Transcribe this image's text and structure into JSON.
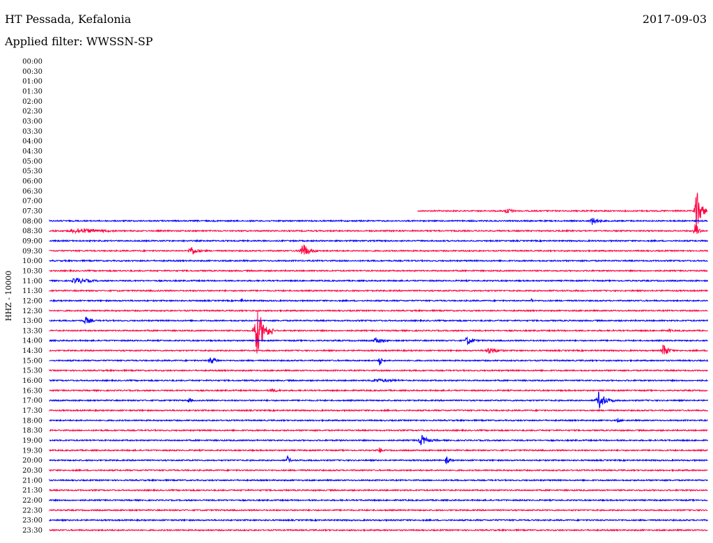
{
  "header": {
    "station": "HT Pessada, Kefalonia",
    "date": "2017-09-03",
    "filter": "Applied filter: WWSSN-SP"
  },
  "colors": {
    "red": "#ff0040",
    "blue": "#0000ff",
    "text": "#000000"
  },
  "chart_data": {
    "type": "helicorder",
    "ylabel": "HHZ - 10000",
    "row_labels": [
      "00:00",
      "00:30",
      "01:00",
      "01:30",
      "02:00",
      "02:30",
      "03:00",
      "03:30",
      "04:00",
      "04:30",
      "05:00",
      "05:30",
      "06:00",
      "06:30",
      "07:00",
      "07:30",
      "08:00",
      "08:30",
      "09:00",
      "09:30",
      "10:00",
      "10:30",
      "11:00",
      "11:30",
      "12:00",
      "12:30",
      "13:00",
      "13:30",
      "14:00",
      "14:30",
      "15:00",
      "15:30",
      "16:00",
      "16:30",
      "17:00",
      "17:30",
      "18:00",
      "18:30",
      "19:00",
      "19:30",
      "20:00",
      "20:30",
      "21:00",
      "21:30",
      "22:00",
      "22:30",
      "23:00",
      "23:30"
    ],
    "first_trace_row": "07:30",
    "first_trace_start_fraction": 0.56,
    "events": [
      {
        "row": "07:30",
        "pos": 0.69,
        "amp": 5,
        "len": 0.03
      },
      {
        "row": "07:30",
        "pos": 0.98,
        "amp": 34,
        "len": 0.02
      },
      {
        "row": "08:00",
        "pos": 0.82,
        "amp": 6,
        "len": 0.03
      },
      {
        "row": "08:30",
        "pos": 0.02,
        "amp": 4,
        "len": 0.15
      },
      {
        "row": "08:30",
        "pos": 0.98,
        "amp": 18,
        "len": 0.01
      },
      {
        "row": "09:30",
        "pos": 0.21,
        "amp": 8,
        "len": 0.03
      },
      {
        "row": "09:30",
        "pos": 0.38,
        "amp": 12,
        "len": 0.03
      },
      {
        "row": "11:00",
        "pos": 0.03,
        "amp": 5,
        "len": 0.07
      },
      {
        "row": "12:00",
        "pos": 0.29,
        "amp": 4,
        "len": 0.01
      },
      {
        "row": "12:00",
        "pos": 0.73,
        "amp": 5,
        "len": 0.01
      },
      {
        "row": "13:00",
        "pos": 0.05,
        "amp": 6,
        "len": 0.03
      },
      {
        "row": "13:30",
        "pos": 0.31,
        "amp": 38,
        "len": 0.03
      },
      {
        "row": "13:30",
        "pos": 0.94,
        "amp": 4,
        "len": 0.01
      },
      {
        "row": "14:00",
        "pos": 0.49,
        "amp": 5,
        "len": 0.04
      },
      {
        "row": "14:00",
        "pos": 0.63,
        "amp": 7,
        "len": 0.03
      },
      {
        "row": "14:30",
        "pos": 0.66,
        "amp": 5,
        "len": 0.05
      },
      {
        "row": "14:30",
        "pos": 0.93,
        "amp": 12,
        "len": 0.02
      },
      {
        "row": "15:00",
        "pos": 0.24,
        "amp": 6,
        "len": 0.03
      },
      {
        "row": "15:00",
        "pos": 0.5,
        "amp": 10,
        "len": 0.01
      },
      {
        "row": "16:00",
        "pos": 0.48,
        "amp": 3,
        "len": 0.12
      },
      {
        "row": "16:30",
        "pos": 0.33,
        "amp": 3,
        "len": 0.05
      },
      {
        "row": "17:00",
        "pos": 0.21,
        "amp": 5,
        "len": 0.01
      },
      {
        "row": "17:00",
        "pos": 0.83,
        "amp": 14,
        "len": 0.03
      },
      {
        "row": "18:00",
        "pos": 0.86,
        "amp": 4,
        "len": 0.02
      },
      {
        "row": "19:00",
        "pos": 0.56,
        "amp": 9,
        "len": 0.03
      },
      {
        "row": "19:30",
        "pos": 0.5,
        "amp": 6,
        "len": 0.01
      },
      {
        "row": "20:00",
        "pos": 0.36,
        "amp": 9,
        "len": 0.01
      },
      {
        "row": "20:00",
        "pos": 0.6,
        "amp": 6,
        "len": 0.02
      }
    ]
  }
}
